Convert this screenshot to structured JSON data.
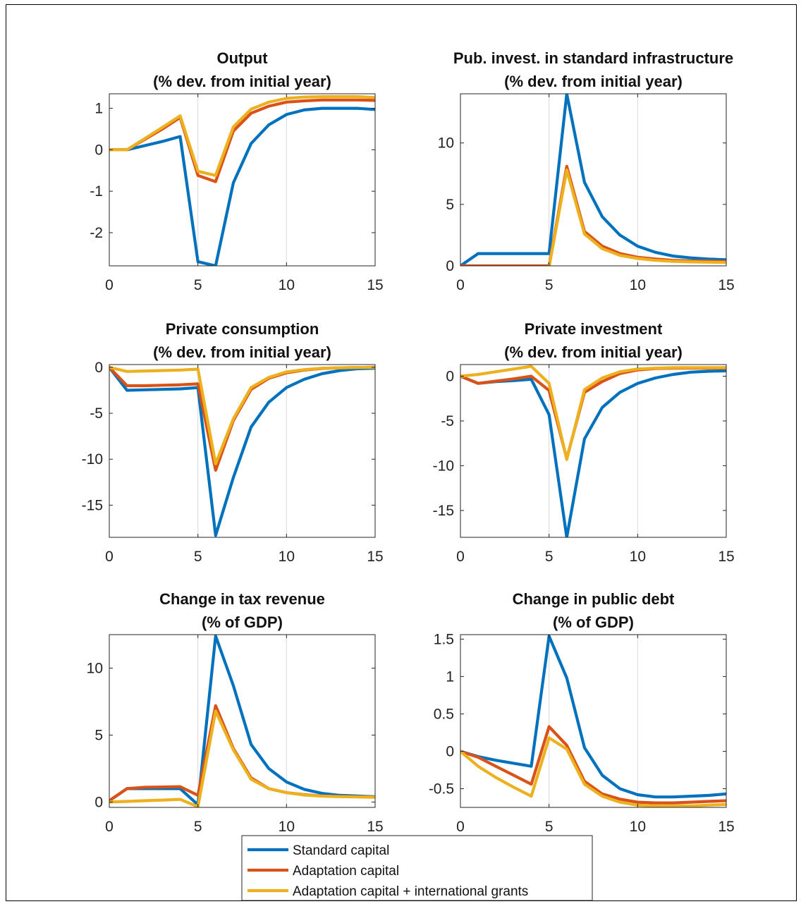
{
  "colors": {
    "standard": "#0072BD",
    "adaptation": "#D95319",
    "grants": "#EDB120",
    "grid": "#d9d9d9",
    "axis": "#262626"
  },
  "legend": {
    "entries": [
      {
        "series": "standard",
        "label": "Standard capital"
      },
      {
        "series": "adaptation",
        "label": "Adaptation capital"
      },
      {
        "series": "grants",
        "label": "Adaptation capital + international grants"
      }
    ]
  },
  "chart_data": [
    {
      "type": "line",
      "title": [
        "Output",
        "(% dev. from initial year)"
      ],
      "x": [
        0,
        1,
        2,
        3,
        4,
        5,
        6,
        7,
        8,
        9,
        10,
        11,
        12,
        13,
        14,
        15
      ],
      "xlim": [
        0,
        15
      ],
      "ylim": [
        -2.8,
        1.35
      ],
      "xticks": [
        0,
        5,
        10,
        15
      ],
      "yticks": [
        -2,
        -1,
        0,
        1
      ],
      "grid": "x",
      "series": [
        {
          "key": "standard",
          "values": [
            0,
            0,
            0.1,
            0.2,
            0.32,
            -2.7,
            -2.8,
            -0.8,
            0.15,
            0.6,
            0.85,
            0.96,
            1.0,
            1.0,
            1.0,
            0.97
          ]
        },
        {
          "key": "adaptation",
          "values": [
            0,
            0,
            0.25,
            0.5,
            0.78,
            -0.62,
            -0.77,
            0.45,
            0.88,
            1.05,
            1.15,
            1.18,
            1.2,
            1.2,
            1.2,
            1.19
          ]
        },
        {
          "key": "grants",
          "values": [
            0,
            0,
            0.27,
            0.54,
            0.82,
            -0.52,
            -0.62,
            0.55,
            0.98,
            1.15,
            1.24,
            1.27,
            1.28,
            1.28,
            1.28,
            1.26
          ]
        }
      ]
    },
    {
      "type": "line",
      "title": [
        "Pub. invest. in standard infrastructure",
        "(% dev. from initial year)"
      ],
      "x": [
        0,
        1,
        2,
        3,
        4,
        5,
        6,
        7,
        8,
        9,
        10,
        11,
        12,
        13,
        14,
        15
      ],
      "xlim": [
        0,
        15
      ],
      "ylim": [
        0,
        14
      ],
      "xticks": [
        0,
        5,
        10,
        15
      ],
      "yticks": [
        0,
        5,
        10
      ],
      "grid": "x",
      "series": [
        {
          "key": "standard",
          "values": [
            0,
            1,
            1,
            1,
            1,
            1,
            14,
            6.8,
            4.0,
            2.5,
            1.6,
            1.1,
            0.8,
            0.65,
            0.55,
            0.5
          ]
        },
        {
          "key": "adaptation",
          "values": [
            0,
            0,
            0,
            0,
            0,
            0,
            8.1,
            2.8,
            1.6,
            1.0,
            0.7,
            0.55,
            0.45,
            0.4,
            0.38,
            0.35
          ]
        },
        {
          "key": "grants",
          "values": [
            -0.1,
            -0.1,
            -0.1,
            -0.1,
            -0.1,
            -0.1,
            7.8,
            2.6,
            1.4,
            0.85,
            0.6,
            0.45,
            0.37,
            0.32,
            0.3,
            0.28
          ]
        }
      ]
    },
    {
      "type": "line",
      "title": [
        "Private consumption",
        "(% dev. from initial year)"
      ],
      "x": [
        0,
        1,
        2,
        3,
        4,
        5,
        6,
        7,
        8,
        9,
        10,
        11,
        12,
        13,
        14,
        15
      ],
      "xlim": [
        0,
        15
      ],
      "ylim": [
        -18.5,
        0.3
      ],
      "xticks": [
        0,
        5,
        10,
        15
      ],
      "yticks": [
        -15,
        -10,
        -5,
        0
      ],
      "grid": "x",
      "series": [
        {
          "key": "standard",
          "values": [
            0,
            -2.5,
            -2.45,
            -2.4,
            -2.35,
            -2.2,
            -18.3,
            -12.0,
            -6.5,
            -3.8,
            -2.2,
            -1.3,
            -0.7,
            -0.35,
            -0.15,
            -0.1
          ]
        },
        {
          "key": "adaptation",
          "values": [
            0,
            -2.0,
            -2.0,
            -1.95,
            -1.9,
            -1.8,
            -11.2,
            -5.8,
            -2.4,
            -1.2,
            -0.6,
            -0.3,
            -0.12,
            -0.05,
            -0.02,
            0
          ]
        },
        {
          "key": "grants",
          "values": [
            0,
            -0.45,
            -0.4,
            -0.35,
            -0.3,
            -0.2,
            -10.5,
            -5.6,
            -2.2,
            -1.1,
            -0.5,
            -0.25,
            -0.1,
            -0.05,
            -0.02,
            0
          ]
        }
      ]
    },
    {
      "type": "line",
      "title": [
        "Private investment",
        "(% dev. from initial year)"
      ],
      "x": [
        0,
        1,
        2,
        3,
        4,
        5,
        6,
        7,
        8,
        9,
        10,
        11,
        12,
        13,
        14,
        15
      ],
      "xlim": [
        0,
        15
      ],
      "ylim": [
        -18,
        1.3
      ],
      "xticks": [
        0,
        5,
        10,
        15
      ],
      "yticks": [
        -15,
        -10,
        -5,
        0
      ],
      "grid": "x",
      "series": [
        {
          "key": "standard",
          "values": [
            0,
            -0.8,
            -0.6,
            -0.5,
            -0.35,
            -4.3,
            -18,
            -7.0,
            -3.5,
            -1.8,
            -0.8,
            -0.2,
            0.2,
            0.45,
            0.55,
            0.6
          ]
        },
        {
          "key": "adaptation",
          "values": [
            0,
            -0.8,
            -0.55,
            -0.3,
            0.0,
            -1.6,
            -9.2,
            -1.8,
            -0.6,
            0.3,
            0.7,
            0.85,
            0.9,
            0.9,
            0.9,
            0.9
          ]
        },
        {
          "key": "grants",
          "values": [
            0,
            0.2,
            0.5,
            0.8,
            1.1,
            -0.8,
            -9.3,
            -1.5,
            -0.2,
            0.5,
            0.8,
            0.9,
            0.95,
            0.95,
            0.95,
            0.95
          ]
        }
      ]
    },
    {
      "type": "line",
      "title": [
        "Change in tax revenue",
        "(% of GDP)"
      ],
      "x": [
        0,
        1,
        2,
        3,
        4,
        5,
        6,
        7,
        8,
        9,
        10,
        11,
        12,
        13,
        14,
        15
      ],
      "xlim": [
        0,
        15
      ],
      "ylim": [
        -0.4,
        12.5
      ],
      "xticks": [
        0,
        5,
        10,
        15
      ],
      "yticks": [
        0,
        5,
        10
      ],
      "grid": "x",
      "series": [
        {
          "key": "standard",
          "values": [
            0.1,
            1.0,
            1.0,
            1.0,
            1.0,
            -0.2,
            12.4,
            8.7,
            4.3,
            2.5,
            1.5,
            0.95,
            0.65,
            0.5,
            0.45,
            0.4
          ]
        },
        {
          "key": "adaptation",
          "values": [
            0.1,
            1.0,
            1.1,
            1.12,
            1.15,
            0.5,
            7.2,
            4.0,
            1.8,
            1.0,
            0.7,
            0.55,
            0.45,
            0.42,
            0.4,
            0.38
          ]
        },
        {
          "key": "grants",
          "values": [
            0,
            0.05,
            0.1,
            0.15,
            0.2,
            -0.35,
            6.8,
            3.9,
            1.7,
            1.0,
            0.7,
            0.52,
            0.44,
            0.4,
            0.38,
            0.36
          ]
        }
      ]
    },
    {
      "type": "line",
      "title": [
        "Change in public debt",
        "(% of GDP)"
      ],
      "x": [
        0,
        1,
        2,
        3,
        4,
        5,
        6,
        7,
        8,
        9,
        10,
        11,
        12,
        13,
        14,
        15
      ],
      "xlim": [
        0,
        15
      ],
      "ylim": [
        -0.75,
        1.56
      ],
      "xticks": [
        0,
        5,
        10,
        15
      ],
      "yticks": [
        -0.5,
        0,
        0.5,
        1,
        1.5
      ],
      "grid": "x",
      "series": [
        {
          "key": "standard",
          "values": [
            0,
            -0.07,
            -0.12,
            -0.16,
            -0.2,
            1.54,
            0.98,
            0.05,
            -0.32,
            -0.5,
            -0.58,
            -0.61,
            -0.61,
            -0.6,
            -0.59,
            -0.57
          ]
        },
        {
          "key": "adaptation",
          "values": [
            0,
            -0.08,
            -0.2,
            -0.32,
            -0.44,
            0.33,
            0.08,
            -0.4,
            -0.57,
            -0.64,
            -0.68,
            -0.69,
            -0.69,
            -0.68,
            -0.67,
            -0.66
          ]
        },
        {
          "key": "grants",
          "values": [
            0,
            -0.2,
            -0.35,
            -0.48,
            -0.6,
            0.18,
            0.03,
            -0.44,
            -0.6,
            -0.68,
            -0.72,
            -0.73,
            -0.73,
            -0.73,
            -0.72,
            -0.71
          ]
        }
      ]
    }
  ]
}
